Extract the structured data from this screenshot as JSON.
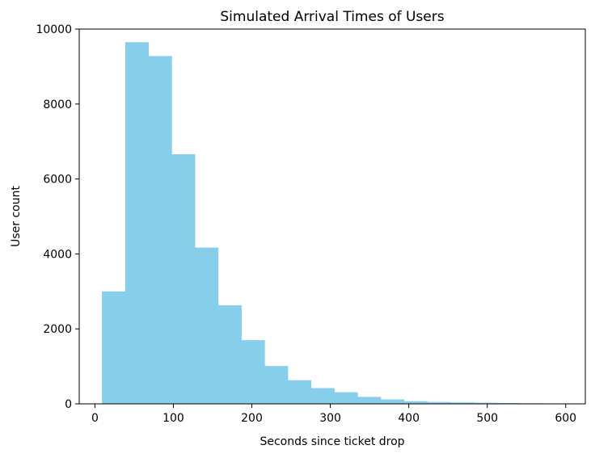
{
  "chart_data": {
    "type": "bar",
    "title": "Simulated Arrival Times of Users",
    "xlabel": "Seconds since ticket drop",
    "ylabel": "User count",
    "xlim": [
      -20,
      625
    ],
    "ylim": [
      0,
      10000
    ],
    "xticks": [
      0,
      100,
      200,
      300,
      400,
      500,
      600
    ],
    "yticks": [
      0,
      2000,
      4000,
      6000,
      8000,
      10000
    ],
    "bin_start": 9,
    "bin_width": 29.6,
    "values": [
      3000,
      9650,
      9280,
      6660,
      4170,
      2630,
      1700,
      1010,
      630,
      420,
      310,
      185,
      120,
      70,
      50,
      40,
      30,
      20,
      15,
      10
    ],
    "bar_color": "#87ceeb",
    "grid": false,
    "legend": "none"
  }
}
